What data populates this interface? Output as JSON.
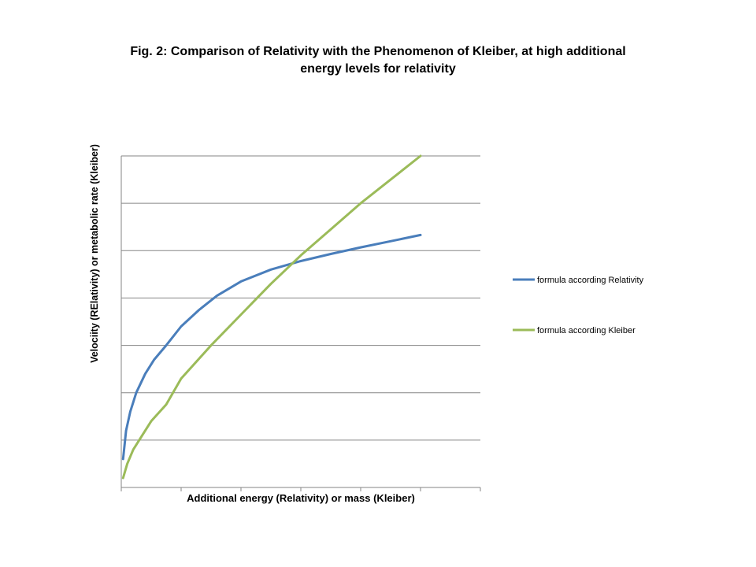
{
  "title_line1": "Fig. 2: Comparison of Relativity with the Phenomenon of Kleiber, at high additional",
  "title_line2": "energy levels for relativity",
  "chart_data": {
    "type": "line",
    "title": "Fig. 2: Comparison of Relativity with the Phenomenon of Kleiber, at high additional energy levels for relativity",
    "xlabel": "Additional energy (Relativity) or  mass (Kleiber)",
    "ylabel": "Velociity (RElativity) or metabolic rate (Kleiber)",
    "xlim": [
      0,
      6
    ],
    "ylim": [
      0,
      7
    ],
    "grid": true,
    "legend_position": "right",
    "tick_labels_shown": false,
    "series": [
      {
        "name": "formula according Relativity",
        "color": "#4A7EBB",
        "x": [
          0.03,
          0.08,
          0.15,
          0.25,
          0.4,
          0.55,
          0.75,
          1.0,
          1.3,
          1.6,
          2.0,
          2.5,
          3.0,
          3.5,
          4.0,
          4.5,
          5.0
        ],
        "y": [
          0.6,
          1.2,
          1.6,
          2.0,
          2.4,
          2.7,
          3.0,
          3.4,
          3.75,
          4.05,
          4.35,
          4.6,
          4.78,
          4.93,
          5.07,
          5.2,
          5.33
        ]
      },
      {
        "name": "formula according Kleiber",
        "color": "#9BBB59",
        "x": [
          0.03,
          0.1,
          0.2,
          0.35,
          0.5,
          0.75,
          1.0,
          1.5,
          2.0,
          2.5,
          3.0,
          3.5,
          4.0,
          4.5,
          5.0
        ],
        "y": [
          0.2,
          0.5,
          0.8,
          1.1,
          1.4,
          1.75,
          2.3,
          3.0,
          3.65,
          4.3,
          4.9,
          5.45,
          6.0,
          6.5,
          7.0
        ]
      }
    ]
  }
}
